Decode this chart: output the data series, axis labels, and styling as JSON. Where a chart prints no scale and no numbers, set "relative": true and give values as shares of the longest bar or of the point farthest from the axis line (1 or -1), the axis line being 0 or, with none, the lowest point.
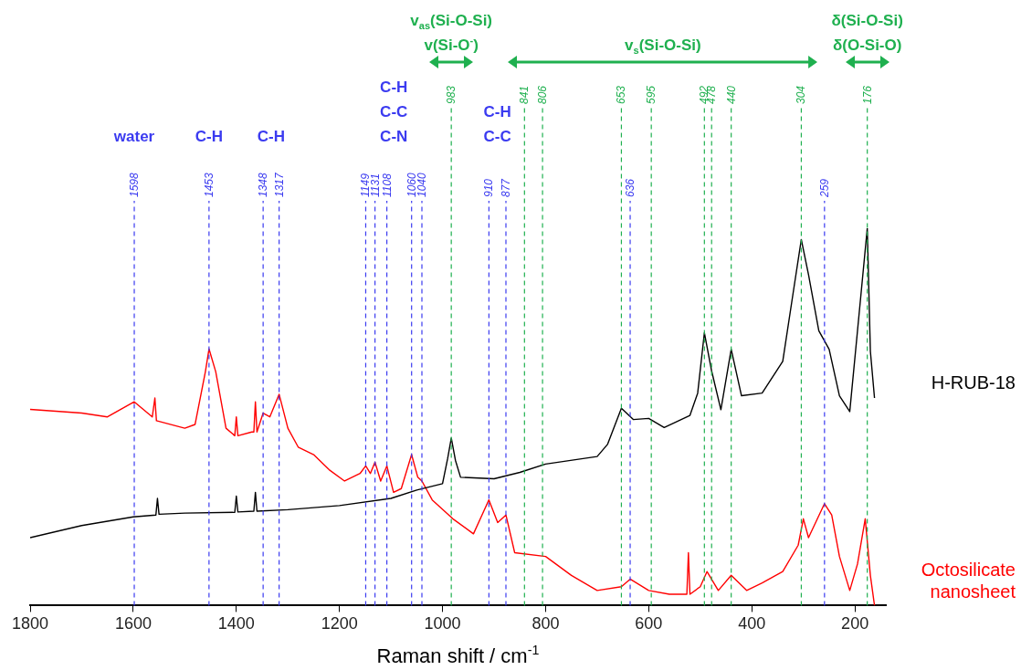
{
  "chart_data": {
    "type": "line",
    "relative": true,
    "xlabel": "Raman shift / cm$^{-1}$",
    "xlim": [
      1800,
      140
    ],
    "xticks": [
      1800,
      1600,
      1400,
      1200,
      1000,
      800,
      600,
      400,
      200
    ],
    "legend": false,
    "marker": "none",
    "line_style": "solid",
    "series": [
      {
        "name": "H-RUB-18",
        "color": "#000000",
        "x": [
          1800,
          1700,
          1600,
          1556,
          1553,
          1550,
          1500,
          1403,
          1400,
          1397,
          1366,
          1363,
          1360,
          1300,
          1200,
          1100,
          1050,
          1000,
          990,
          983,
          975,
          965,
          900,
          850,
          800,
          700,
          680,
          653,
          630,
          600,
          570,
          520,
          505,
          492,
          478,
          460,
          440,
          420,
          380,
          340,
          320,
          304,
          290,
          270,
          250,
          230,
          210,
          195,
          176,
          170,
          162
        ],
        "values": [
          0.18,
          0.212,
          0.235,
          0.24,
          0.284,
          0.242,
          0.245,
          0.247,
          0.29,
          0.248,
          0.25,
          0.3,
          0.25,
          0.254,
          0.265,
          0.284,
          0.306,
          0.323,
          0.39,
          0.444,
          0.385,
          0.34,
          0.336,
          0.353,
          0.375,
          0.395,
          0.427,
          0.523,
          0.493,
          0.496,
          0.472,
          0.504,
          0.563,
          0.723,
          0.622,
          0.519,
          0.679,
          0.556,
          0.563,
          0.647,
          0.827,
          0.97,
          0.877,
          0.728,
          0.679,
          0.556,
          0.514,
          0.728,
          1,
          0.674,
          0.55
        ]
      },
      {
        "name": "Octosilicate nanosheet",
        "color": "#ff0000",
        "x": [
          1800,
          1700,
          1650,
          1598,
          1563,
          1558,
          1555,
          1500,
          1480,
          1460,
          1453,
          1440,
          1420,
          1403,
          1400,
          1397,
          1370,
          1366,
          1363,
          1360,
          1348,
          1335,
          1317,
          1300,
          1280,
          1250,
          1220,
          1190,
          1160,
          1149,
          1140,
          1131,
          1120,
          1108,
          1095,
          1080,
          1060,
          1048,
          1040,
          1020,
          980,
          940,
          920,
          910,
          893,
          877,
          860,
          800,
          750,
          700,
          653,
          636,
          600,
          560,
          526,
          523,
          520,
          500,
          487,
          465,
          440,
          410,
          380,
          340,
          310,
          300,
          290,
          259,
          245,
          230,
          210,
          195,
          180,
          170,
          162
        ],
        "values": [
          0.52,
          0.51,
          0.5,
          0.54,
          0.5,
          0.55,
          0.49,
          0.47,
          0.48,
          0.62,
          0.68,
          0.62,
          0.47,
          0.45,
          0.5,
          0.45,
          0.46,
          0.46,
          0.54,
          0.46,
          0.51,
          0.5,
          0.56,
          0.47,
          0.42,
          0.4,
          0.36,
          0.33,
          0.35,
          0.37,
          0.35,
          0.38,
          0.33,
          0.37,
          0.3,
          0.31,
          0.4,
          0.34,
          0.33,
          0.28,
          0.23,
          0.19,
          0.25,
          0.28,
          0.22,
          0.24,
          0.14,
          0.13,
          0.08,
          0.04,
          0.05,
          0.07,
          0.04,
          0.03,
          0.03,
          0.14,
          0.03,
          0.05,
          0.09,
          0.04,
          0.08,
          0.04,
          0.06,
          0.09,
          0.16,
          0.23,
          0.18,
          0.27,
          0.24,
          0.13,
          0.04,
          0.11,
          0.23,
          0.08,
          0
        ]
      }
    ],
    "ref_lines": [
      {
        "axis": "x",
        "value": 1598,
        "label": "1598",
        "color": "#3b3bf0",
        "line_style": "dashed"
      },
      {
        "axis": "x",
        "value": 1453,
        "label": "1453",
        "color": "#3b3bf0",
        "line_style": "dashed"
      },
      {
        "axis": "x",
        "value": 1348,
        "label": "1348",
        "color": "#3b3bf0",
        "line_style": "dashed"
      },
      {
        "axis": "x",
        "value": 1317,
        "label": "1317",
        "color": "#3b3bf0",
        "line_style": "dashed"
      },
      {
        "axis": "x",
        "value": 1149,
        "label": "1149",
        "color": "#3b3bf0",
        "line_style": "dashed"
      },
      {
        "axis": "x",
        "value": 1131,
        "label": "1131",
        "color": "#3b3bf0",
        "line_style": "dashed"
      },
      {
        "axis": "x",
        "value": 1108,
        "label": "1108",
        "color": "#3b3bf0",
        "line_style": "dashed"
      },
      {
        "axis": "x",
        "value": 1060,
        "label": "1060",
        "color": "#3b3bf0",
        "line_style": "dashed"
      },
      {
        "axis": "x",
        "value": 1040,
        "label": "1040",
        "color": "#3b3bf0",
        "line_style": "dashed"
      },
      {
        "axis": "x",
        "value": 910,
        "label": "910",
        "color": "#3b3bf0",
        "line_style": "dashed"
      },
      {
        "axis": "x",
        "value": 877,
        "label": "877",
        "color": "#3b3bf0",
        "line_style": "dashed"
      },
      {
        "axis": "x",
        "value": 636,
        "label": "636",
        "color": "#3b3bf0",
        "line_style": "dashed"
      },
      {
        "axis": "x",
        "value": 259,
        "label": "259",
        "color": "#3b3bf0",
        "line_style": "dashed"
      },
      {
        "axis": "x",
        "value": 983,
        "label": "983",
        "color": "#1fb04f",
        "line_style": "dashed"
      },
      {
        "axis": "x",
        "value": 841,
        "label": "841",
        "color": "#1fb04f",
        "line_style": "dashed"
      },
      {
        "axis": "x",
        "value": 806,
        "label": "806",
        "color": "#1fb04f",
        "line_style": "dashed"
      },
      {
        "axis": "x",
        "value": 653,
        "label": "653",
        "color": "#1fb04f",
        "line_style": "dashed"
      },
      {
        "axis": "x",
        "value": 595,
        "label": "595",
        "color": "#1fb04f",
        "line_style": "dashed"
      },
      {
        "axis": "x",
        "value": 492,
        "label": "492",
        "color": "#1fb04f",
        "line_style": "dashed"
      },
      {
        "axis": "x",
        "value": 478,
        "label": "478",
        "color": "#1fb04f",
        "line_style": "dashed"
      },
      {
        "axis": "x",
        "value": 440,
        "label": "440",
        "color": "#1fb04f",
        "line_style": "dashed"
      },
      {
        "axis": "x",
        "value": 304,
        "label": "304",
        "color": "#1fb04f",
        "line_style": "dashed"
      },
      {
        "axis": "x",
        "value": 176,
        "label": "176",
        "color": "#1fb04f",
        "line_style": "dashed"
      }
    ],
    "annotations": [
      "water",
      "C-H",
      "C-H",
      "C-H\nC-C\nC-N",
      "C-H\nC-C",
      "v$_{as}$(Si-O-Si)\nv(Si-O$^{-}$)",
      "v$_{s}$(Si-O-Si)",
      "δ(Si-O-Si)\nδ(O-Si-O)"
    ]
  }
}
